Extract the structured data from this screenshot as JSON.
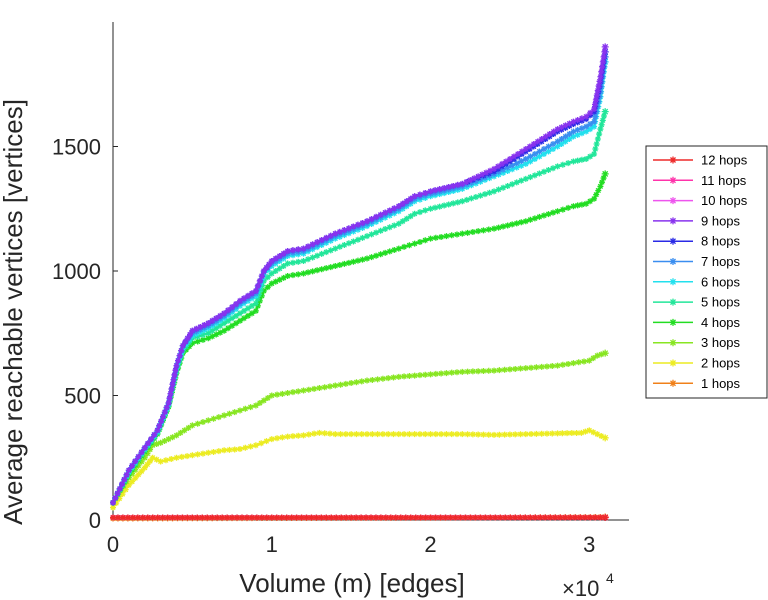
{
  "chart_data": {
    "type": "line",
    "xlabel": "Volume (m) [edges]",
    "ylabel": "Average reachable vertices [vertices]",
    "x_multiplier": {
      "base": "×10",
      "exponent": "4"
    },
    "xlim": [
      0,
      32500
    ],
    "ylim": [
      0,
      2000
    ],
    "xticks": [
      0,
      10000,
      20000,
      30000
    ],
    "xtick_labels": [
      "0",
      "1",
      "2",
      "3"
    ],
    "yticks": [
      0,
      500,
      1000,
      1500
    ],
    "ytick_labels": [
      "0",
      "500",
      "1000",
      "1500"
    ],
    "legend_position": "right",
    "series": [
      {
        "name": "12 hops",
        "color": "#ee2a2a",
        "x": [
          0,
          10000,
          20000,
          31000
        ],
        "y": [
          10,
          10,
          10,
          10
        ]
      },
      {
        "name": "11 hops",
        "color": "#ff33aa",
        "x": [
          0,
          10000,
          20000,
          31000
        ],
        "y": [
          10,
          10,
          10,
          10
        ]
      },
      {
        "name": "10 hops",
        "color": "#ee55ee",
        "x": [
          0,
          10000,
          20000,
          31000
        ],
        "y": [
          10,
          10,
          10,
          10
        ]
      },
      {
        "name": "9 hops",
        "color": "#8833ee",
        "x": [
          0,
          1000,
          2000,
          2800,
          3500,
          4000,
          4400,
          5000,
          6000,
          7000,
          8000,
          9000,
          9500,
          10000,
          11000,
          12000,
          14000,
          16000,
          18000,
          19000,
          20000,
          22000,
          23000,
          24000,
          25000,
          26000,
          27000,
          28000,
          29000,
          29800,
          30300,
          30700,
          31000
        ],
        "y": [
          70,
          200,
          290,
          360,
          470,
          620,
          700,
          760,
          790,
          830,
          880,
          920,
          1000,
          1040,
          1080,
          1090,
          1150,
          1200,
          1260,
          1300,
          1320,
          1350,
          1380,
          1410,
          1450,
          1490,
          1530,
          1570,
          1600,
          1620,
          1650,
          1780,
          1900
        ]
      },
      {
        "name": "8 hops",
        "color": "#2a2ae6",
        "x": [
          0,
          1000,
          2000,
          2800,
          3500,
          4000,
          4400,
          5000,
          6000,
          7000,
          8000,
          9000,
          9500,
          10000,
          11000,
          12000,
          14000,
          16000,
          18000,
          19000,
          20000,
          22000,
          23000,
          24000,
          25000,
          26000,
          27000,
          28000,
          29000,
          29800,
          30300,
          30700,
          31000
        ],
        "y": [
          70,
          200,
          290,
          360,
          470,
          620,
          700,
          760,
          790,
          830,
          880,
          920,
          1000,
          1040,
          1080,
          1090,
          1150,
          1200,
          1260,
          1300,
          1320,
          1350,
          1375,
          1400,
          1440,
          1480,
          1520,
          1560,
          1590,
          1610,
          1640,
          1760,
          1880
        ]
      },
      {
        "name": "7 hops",
        "color": "#3a8ef0",
        "x": [
          0,
          1000,
          2000,
          2800,
          3500,
          4000,
          4400,
          5000,
          6000,
          7000,
          8000,
          9000,
          9500,
          10000,
          11000,
          12000,
          14000,
          16000,
          18000,
          19000,
          20000,
          22000,
          24000,
          26000,
          28000,
          29000,
          29800,
          30300,
          30700,
          31000
        ],
        "y": [
          70,
          200,
          290,
          360,
          470,
          620,
          700,
          750,
          780,
          820,
          870,
          910,
          995,
          1030,
          1070,
          1080,
          1140,
          1190,
          1250,
          1290,
          1310,
          1340,
          1390,
          1450,
          1520,
          1560,
          1580,
          1600,
          1720,
          1860
        ]
      },
      {
        "name": "6 hops",
        "color": "#22e0ee",
        "x": [
          0,
          1000,
          2000,
          2800,
          3500,
          4000,
          4400,
          5000,
          6000,
          7000,
          8000,
          9000,
          9500,
          10000,
          11000,
          12000,
          14000,
          16000,
          18000,
          19000,
          20000,
          22000,
          24000,
          26000,
          28000,
          29000,
          29800,
          30300,
          30700,
          31000
        ],
        "y": [
          70,
          195,
          285,
          355,
          465,
          610,
          690,
          740,
          770,
          810,
          860,
          900,
          985,
          1020,
          1060,
          1070,
          1130,
          1180,
          1240,
          1280,
          1300,
          1330,
          1380,
          1430,
          1500,
          1540,
          1560,
          1580,
          1700,
          1840
        ]
      },
      {
        "name": "5 hops",
        "color": "#22e69a",
        "x": [
          0,
          1000,
          2000,
          2800,
          3500,
          4000,
          4400,
          5000,
          6000,
          7000,
          8000,
          9000,
          9500,
          10000,
          11000,
          12000,
          14000,
          16000,
          18000,
          19000,
          20000,
          22000,
          24000,
          26000,
          28000,
          29000,
          29800,
          30300,
          30700,
          31000
        ],
        "y": [
          70,
          190,
          280,
          350,
          460,
          600,
          680,
          730,
          750,
          790,
          830,
          870,
          960,
          990,
          1030,
          1040,
          1090,
          1140,
          1190,
          1230,
          1250,
          1280,
          1320,
          1370,
          1420,
          1440,
          1450,
          1470,
          1570,
          1640
        ]
      },
      {
        "name": "4 hops",
        "color": "#22dd22",
        "x": [
          0,
          1000,
          2000,
          2800,
          3500,
          4000,
          4400,
          5000,
          6000,
          7000,
          8000,
          9000,
          9500,
          10000,
          11000,
          12000,
          14000,
          16000,
          18000,
          19000,
          20000,
          22000,
          24000,
          26000,
          28000,
          29000,
          29800,
          30300,
          30700,
          31000
        ],
        "y": [
          70,
          185,
          275,
          345,
          455,
          590,
          670,
          710,
          730,
          760,
          800,
          840,
          920,
          950,
          980,
          990,
          1020,
          1050,
          1090,
          1110,
          1130,
          1150,
          1170,
          1200,
          1240,
          1260,
          1270,
          1290,
          1340,
          1390
        ]
      },
      {
        "name": "3 hops",
        "color": "#88e622",
        "x": [
          0,
          1000,
          2000,
          2500,
          3000,
          4000,
          5000,
          6000,
          7000,
          8000,
          9000,
          10000,
          11000,
          12000,
          14000,
          16000,
          18000,
          20000,
          22000,
          24000,
          26000,
          28000,
          29000,
          30000,
          30500,
          31000
        ],
        "y": [
          70,
          170,
          250,
          300,
          310,
          340,
          380,
          400,
          420,
          440,
          460,
          500,
          510,
          520,
          540,
          560,
          575,
          585,
          595,
          600,
          610,
          620,
          630,
          640,
          660,
          670
        ]
      },
      {
        "name": "2 hops",
        "color": "#ecec22",
        "x": [
          0,
          1000,
          2000,
          2500,
          3000,
          4000,
          5000,
          6000,
          7000,
          8000,
          9000,
          10000,
          11000,
          12000,
          13000,
          14000,
          16000,
          18000,
          20000,
          22000,
          24000,
          26000,
          28000,
          29500,
          30000,
          30500,
          31000
        ],
        "y": [
          50,
          140,
          210,
          250,
          235,
          250,
          260,
          270,
          280,
          285,
          300,
          325,
          335,
          340,
          350,
          345,
          345,
          345,
          345,
          345,
          342,
          345,
          348,
          350,
          360,
          345,
          330
        ]
      },
      {
        "name": "1 hops",
        "color": "#f0801a",
        "x": [
          0,
          10000,
          20000,
          31000
        ],
        "y": [
          6,
          8,
          9,
          12
        ]
      }
    ]
  }
}
